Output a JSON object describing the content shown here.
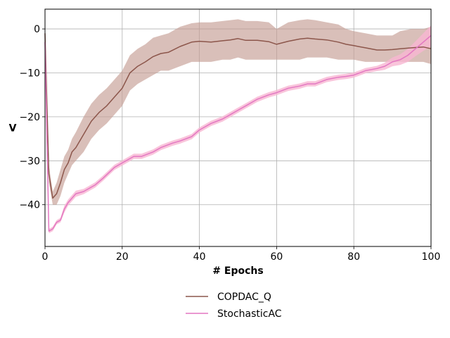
{
  "chart_data": {
    "type": "line",
    "xlabel": "# Epochs",
    "ylabel": "V",
    "xlim": [
      0,
      100
    ],
    "ylim": [
      -49.5,
      4.5
    ],
    "xticks": [
      0,
      20,
      40,
      60,
      80,
      100
    ],
    "yticks": [
      0,
      -10,
      -20,
      -30,
      -40
    ],
    "xtick_labels": [
      "0",
      "20",
      "40",
      "60",
      "80",
      "100"
    ],
    "ytick_labels": [
      "0",
      "−10",
      "−20",
      "−30",
      "−40"
    ],
    "grid": true,
    "legend_position": "bottom-center",
    "series": [
      {
        "name": "COPDAC_Q",
        "color": "#8c564b",
        "band_color": "#c49c94",
        "x": [
          0,
          1,
          2,
          3,
          4,
          5,
          6,
          7,
          8,
          10,
          12,
          14,
          16,
          18,
          20,
          22,
          24,
          26,
          28,
          30,
          32,
          35,
          38,
          40,
          43,
          46,
          48,
          50,
          52,
          55,
          58,
          60,
          63,
          66,
          68,
          70,
          73,
          76,
          78,
          80,
          83,
          86,
          88,
          90,
          92,
          95,
          98,
          100
        ],
        "mean": [
          -1,
          -33,
          -38.5,
          -37.5,
          -35,
          -32,
          -30.5,
          -28,
          -27,
          -24,
          -21,
          -19,
          -17.5,
          -15.5,
          -13.5,
          -10,
          -8.5,
          -7.5,
          -6.3,
          -5.6,
          -5.3,
          -4,
          -3,
          -2.8,
          -3,
          -2.7,
          -2.5,
          -2.2,
          -2.6,
          -2.6,
          -2.9,
          -3.5,
          -2.8,
          -2.3,
          -2.1,
          -2.3,
          -2.5,
          -3,
          -3.5,
          -3.8,
          -4.3,
          -4.8,
          -4.8,
          -4.7,
          -4.5,
          -4.3,
          -4.1,
          -4.5
        ],
        "lower": [
          -2,
          -35,
          -40,
          -40,
          -38,
          -35,
          -33,
          -31,
          -30,
          -28,
          -25,
          -23,
          -21.5,
          -19.5,
          -17.5,
          -14,
          -12.5,
          -11.5,
          -10.5,
          -9.5,
          -9.5,
          -8.5,
          -7.5,
          -7.5,
          -7.5,
          -7,
          -7,
          -6.5,
          -7,
          -7,
          -7,
          -7,
          -7,
          -7,
          -6.5,
          -6.5,
          -6.5,
          -7,
          -7,
          -7,
          -7.5,
          -7.5,
          -7.5,
          -7.5,
          -7.5,
          -7.5,
          -7.5,
          -8
        ],
        "upper": [
          0,
          -31,
          -37,
          -35,
          -32,
          -29,
          -27.5,
          -25,
          -23.5,
          -20,
          -17,
          -15,
          -13.5,
          -11.5,
          -9.5,
          -6,
          -4.5,
          -3.5,
          -2,
          -1.5,
          -1,
          0.5,
          1.3,
          1.5,
          1.5,
          1.8,
          2,
          2.2,
          1.8,
          1.8,
          1.5,
          0,
          1.5,
          2,
          2.2,
          2,
          1.5,
          1,
          0,
          -0.5,
          -1,
          -1.5,
          -1.5,
          -1.5,
          -0.5,
          0,
          0,
          0.5
        ]
      },
      {
        "name": "StochasticAC",
        "color": "#e377c2",
        "band_color": "#f7b6d2",
        "x": [
          0,
          1,
          2,
          3,
          4,
          5,
          6,
          8,
          10,
          13,
          15,
          18,
          20,
          23,
          25,
          28,
          30,
          33,
          35,
          38,
          40,
          43,
          46,
          48,
          50,
          52,
          55,
          58,
          60,
          63,
          66,
          68,
          70,
          73,
          76,
          78,
          80,
          83,
          86,
          88,
          90,
          92,
          94,
          96,
          98,
          100
        ],
        "mean": [
          -3,
          -46,
          -45.5,
          -44,
          -43.5,
          -41,
          -39.5,
          -37.5,
          -37,
          -35.5,
          -34,
          -31.5,
          -30.5,
          -29,
          -29,
          -28,
          -27,
          -26,
          -25.5,
          -24.5,
          -23,
          -21.5,
          -20.5,
          -19.5,
          -18.5,
          -17.5,
          -16,
          -15,
          -14.5,
          -13.5,
          -13,
          -12.5,
          -12.5,
          -11.5,
          -11,
          -10.8,
          -10.5,
          -9.5,
          -9,
          -8.5,
          -7.5,
          -7,
          -6,
          -4.5,
          -3,
          -1.5
        ],
        "lower": [
          -3.5,
          -46.5,
          -46,
          -44.5,
          -44,
          -41.8,
          -40.2,
          -38.2,
          -37.6,
          -36.1,
          -34.6,
          -32.1,
          -31.1,
          -29.6,
          -29.6,
          -28.6,
          -27.6,
          -26.6,
          -26.1,
          -25.1,
          -23.6,
          -22.1,
          -21.1,
          -20.1,
          -19.1,
          -18.1,
          -16.6,
          -15.6,
          -15.1,
          -14.1,
          -13.6,
          -13.1,
          -13.1,
          -12.1,
          -11.6,
          -11.4,
          -11.1,
          -10.1,
          -9.6,
          -9.3,
          -8.5,
          -8.2,
          -7.5,
          -6.2,
          -5,
          -4
        ],
        "upper": [
          -2.5,
          -45.5,
          -45,
          -43.5,
          -43,
          -40.2,
          -38.8,
          -36.8,
          -36.4,
          -34.9,
          -33.4,
          -30.9,
          -29.9,
          -28.4,
          -28.4,
          -27.4,
          -26.4,
          -25.4,
          -24.9,
          -23.9,
          -22.4,
          -20.9,
          -19.9,
          -18.9,
          -17.9,
          -16.9,
          -15.4,
          -14.4,
          -13.9,
          -12.9,
          -12.4,
          -11.9,
          -11.9,
          -10.9,
          -10.4,
          -10.2,
          -9.9,
          -8.9,
          -8.4,
          -7.7,
          -6.5,
          -5.8,
          -4.5,
          -2.8,
          -1,
          0.8
        ]
      }
    ]
  }
}
